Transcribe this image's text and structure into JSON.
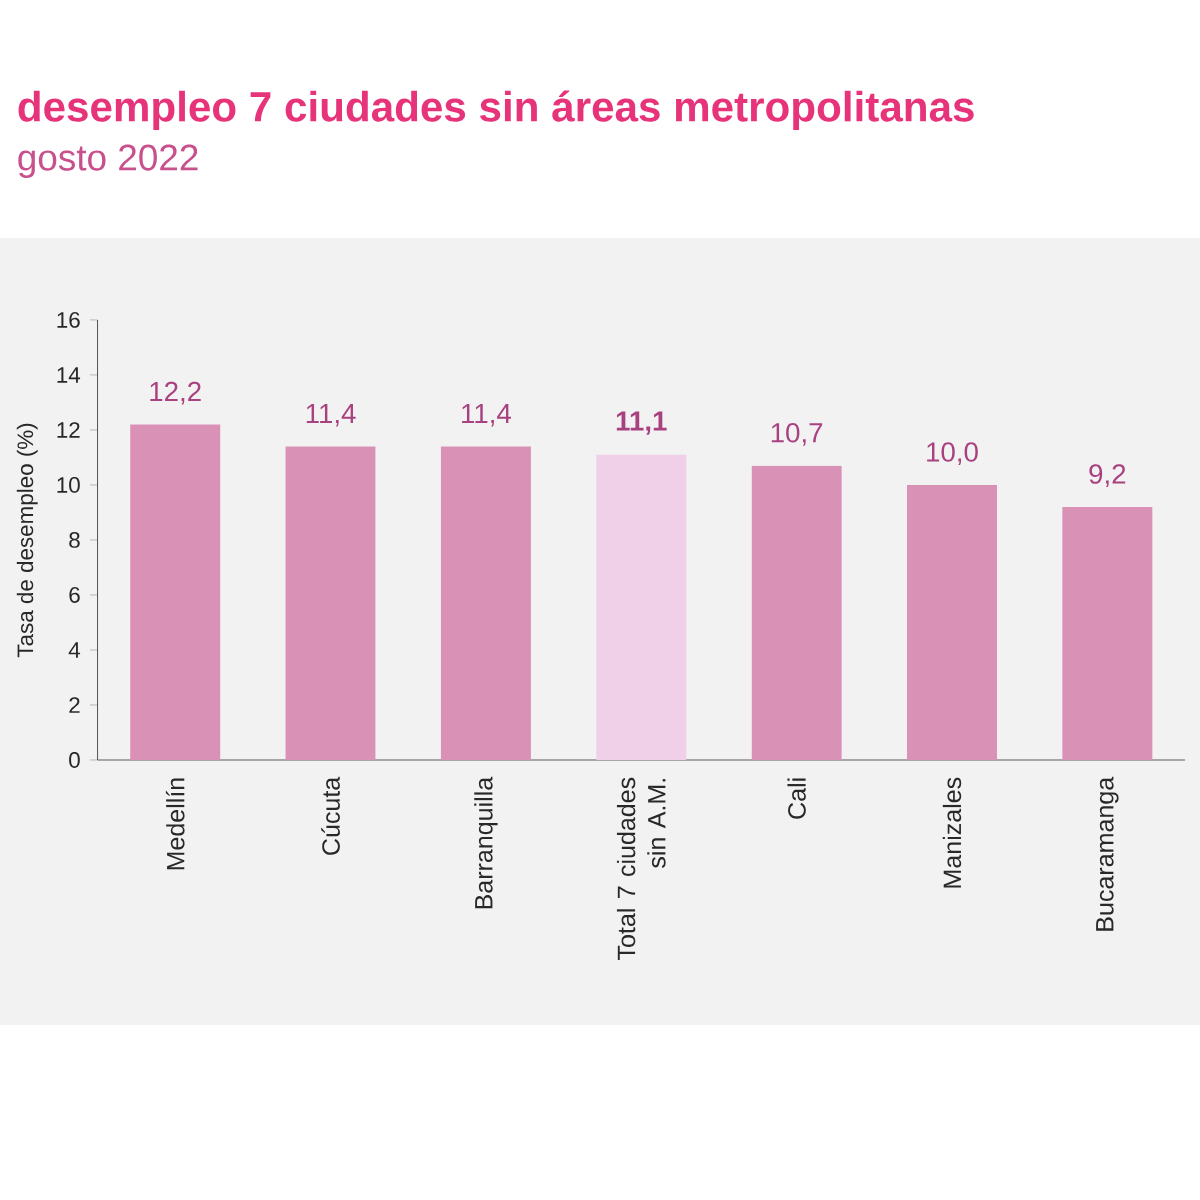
{
  "chart_data": {
    "type": "bar",
    "title": "desempleo 7 ciudades sin áreas metropolitanas",
    "subtitle": "gosto 2022",
    "ylabel": "Tasa de desempleo (%)",
    "categories": [
      "Medellín",
      "Cúcuta",
      "Barranquilla",
      "Total 7 ciudades sin A.M.",
      "Cali",
      "Manizales",
      "Bucaramanga"
    ],
    "values": [
      12.2,
      11.4,
      11.4,
      11.1,
      10.7,
      10.0,
      9.2
    ],
    "colors": [
      "#d992b6",
      "#d992b6",
      "#d992b6",
      "#f0d0e8",
      "#d992b6",
      "#d992b6",
      "#d992b6"
    ],
    "value_labels": [
      "12,2",
      "11,4",
      "11,4",
      "**11,1**",
      "10,7",
      "10,0",
      "9,2"
    ],
    "ylim": [
      0,
      16
    ],
    "yticks": [
      0,
      2,
      4,
      6,
      8,
      10,
      12,
      14,
      16
    ]
  }
}
